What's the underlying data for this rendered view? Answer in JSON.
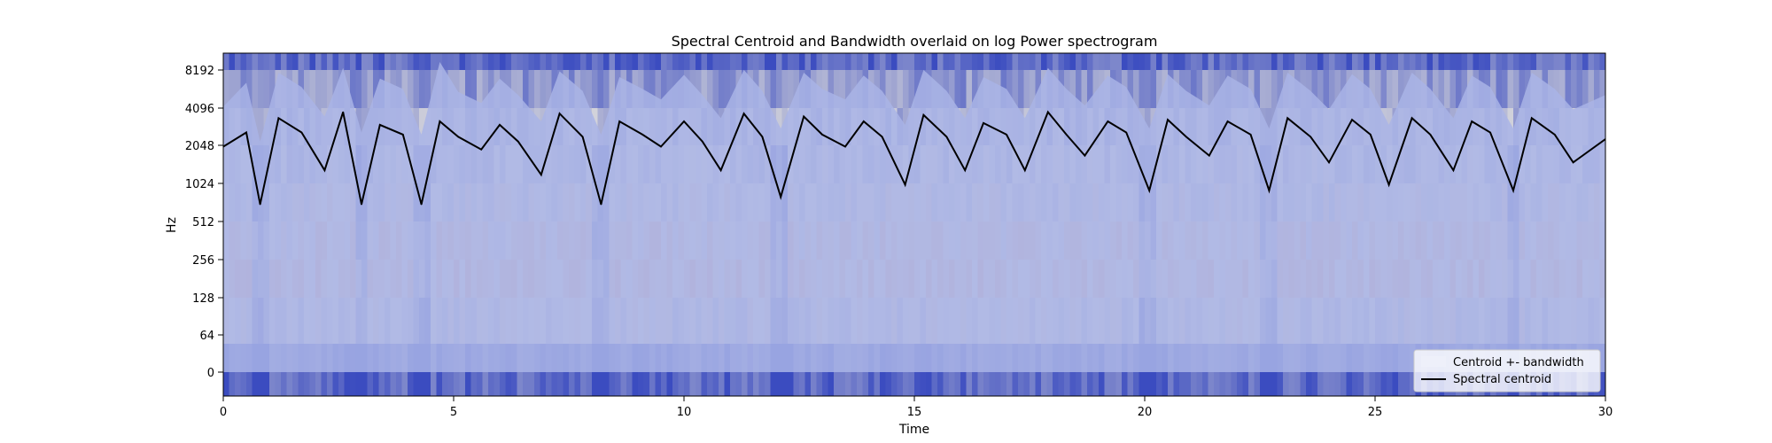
{
  "chart_data": {
    "type": "line",
    "title": "Spectral Centroid and Bandwidth overlaid on log Power spectrogram",
    "xlabel": "Time",
    "ylabel": "Hz",
    "xlim": [
      0,
      30
    ],
    "x_ticks": [
      {
        "value": 0,
        "label": "0"
      },
      {
        "value": 5,
        "label": "5"
      },
      {
        "value": 10,
        "label": "10"
      },
      {
        "value": 15,
        "label": "15"
      },
      {
        "value": 20,
        "label": "20"
      },
      {
        "value": 25,
        "label": "25"
      },
      {
        "value": 30,
        "label": "30"
      }
    ],
    "y_scale": "symlog",
    "y_ticks": [
      {
        "value": 0,
        "label": "0"
      },
      {
        "value": 64,
        "label": "64"
      },
      {
        "value": 128,
        "label": "128"
      },
      {
        "value": 256,
        "label": "256"
      },
      {
        "value": 512,
        "label": "512"
      },
      {
        "value": 1024,
        "label": "1024"
      },
      {
        "value": 2048,
        "label": "2048"
      },
      {
        "value": 4096,
        "label": "4096"
      },
      {
        "value": 8192,
        "label": "8192"
      }
    ],
    "legend_position": "lower-right",
    "grid": false,
    "colormap": "coolwarm",
    "colors": {
      "cold": "#3b4cc0",
      "neutral": "#dddcdc",
      "warm": "#d6604d",
      "band_fill": "#a9b4e6",
      "centroid_line": "#000000"
    },
    "series": [
      {
        "name": "Spectral centroid",
        "x": [
          0,
          0.5,
          0.8,
          1.2,
          1.7,
          2.2,
          2.6,
          3.0,
          3.4,
          3.9,
          4.3,
          4.7,
          5.1,
          5.6,
          6.0,
          6.4,
          6.9,
          7.3,
          7.8,
          8.2,
          8.6,
          9.1,
          9.5,
          10.0,
          10.4,
          10.8,
          11.3,
          11.7,
          12.1,
          12.6,
          13.0,
          13.5,
          13.9,
          14.3,
          14.8,
          15.2,
          15.7,
          16.1,
          16.5,
          17.0,
          17.4,
          17.9,
          18.3,
          18.7,
          19.2,
          19.6,
          20.1,
          20.5,
          20.9,
          21.4,
          21.8,
          22.3,
          22.7,
          23.1,
          23.6,
          24.0,
          24.5,
          24.9,
          25.3,
          25.8,
          26.2,
          26.7,
          27.1,
          27.5,
          28.0,
          28.4,
          28.9,
          29.3,
          30.0
        ],
        "values": [
          2000,
          2600,
          700,
          3400,
          2600,
          1300,
          3800,
          700,
          3000,
          2500,
          700,
          3200,
          2400,
          1900,
          3000,
          2200,
          1200,
          3700,
          2400,
          700,
          3200,
          2500,
          2000,
          3200,
          2200,
          1300,
          3700,
          2400,
          800,
          3500,
          2500,
          2000,
          3200,
          2400,
          1000,
          3600,
          2400,
          1300,
          3100,
          2500,
          1300,
          3800,
          2500,
          1700,
          3200,
          2600,
          900,
          3300,
          2400,
          1700,
          3200,
          2500,
          900,
          3400,
          2400,
          1500,
          3300,
          2500,
          1000,
          3400,
          2500,
          1300,
          3200,
          2600,
          900,
          3400,
          2500,
          1500,
          2300
        ]
      },
      {
        "name": "Centroid +- bandwidth",
        "x": [
          0,
          0.5,
          0.8,
          1.2,
          1.7,
          2.2,
          2.6,
          3.0,
          3.4,
          3.9,
          4.3,
          4.7,
          5.1,
          5.6,
          6.0,
          6.4,
          6.9,
          7.3,
          7.8,
          8.2,
          8.6,
          9.1,
          9.5,
          10.0,
          10.4,
          10.8,
          11.3,
          11.7,
          12.1,
          12.6,
          13.0,
          13.5,
          13.9,
          14.3,
          14.8,
          15.2,
          15.7,
          16.1,
          16.5,
          17.0,
          17.4,
          17.9,
          18.3,
          18.7,
          19.2,
          19.6,
          20.1,
          20.5,
          20.9,
          21.4,
          21.8,
          22.3,
          22.7,
          23.1,
          23.6,
          24.0,
          24.5,
          24.9,
          25.3,
          25.8,
          26.2,
          26.7,
          27.1,
          27.5,
          28.0,
          28.4,
          28.9,
          29.3,
          30.0
        ],
        "upper": [
          4200,
          6500,
          2200,
          7800,
          6000,
          3500,
          8500,
          2600,
          7000,
          5800,
          2500,
          9500,
          5500,
          4500,
          7000,
          5200,
          3200,
          8000,
          5600,
          2500,
          7200,
          5800,
          4800,
          7500,
          5200,
          3400,
          8200,
          5600,
          2800,
          7800,
          5800,
          4800,
          7400,
          5600,
          3000,
          8200,
          5600,
          3400,
          7200,
          5800,
          3400,
          8500,
          5800,
          4300,
          7400,
          6000,
          2800,
          7600,
          5600,
          4300,
          7400,
          5800,
          2800,
          7800,
          5600,
          4000,
          7600,
          5800,
          3000,
          7800,
          5800,
          3400,
          7400,
          6000,
          2800,
          7800,
          5800,
          4000,
          5200
        ],
        "lower": [
          0,
          0,
          0,
          0,
          0,
          0,
          0,
          0,
          0,
          0,
          0,
          0,
          0,
          0,
          0,
          0,
          0,
          0,
          0,
          0,
          0,
          0,
          0,
          0,
          0,
          0,
          0,
          0,
          0,
          0,
          0,
          0,
          0,
          0,
          0,
          0,
          0,
          0,
          0,
          0,
          0,
          0,
          0,
          0,
          0,
          0,
          0,
          0,
          0,
          0,
          0,
          0,
          0,
          0,
          0,
          0,
          0,
          0,
          0,
          0,
          0,
          0,
          0,
          0,
          0,
          0,
          0,
          0,
          0
        ]
      }
    ],
    "legend": [
      {
        "label": "Centroid +- bandwidth",
        "kind": "fill"
      },
      {
        "label": "Spectral centroid",
        "kind": "line"
      }
    ]
  }
}
